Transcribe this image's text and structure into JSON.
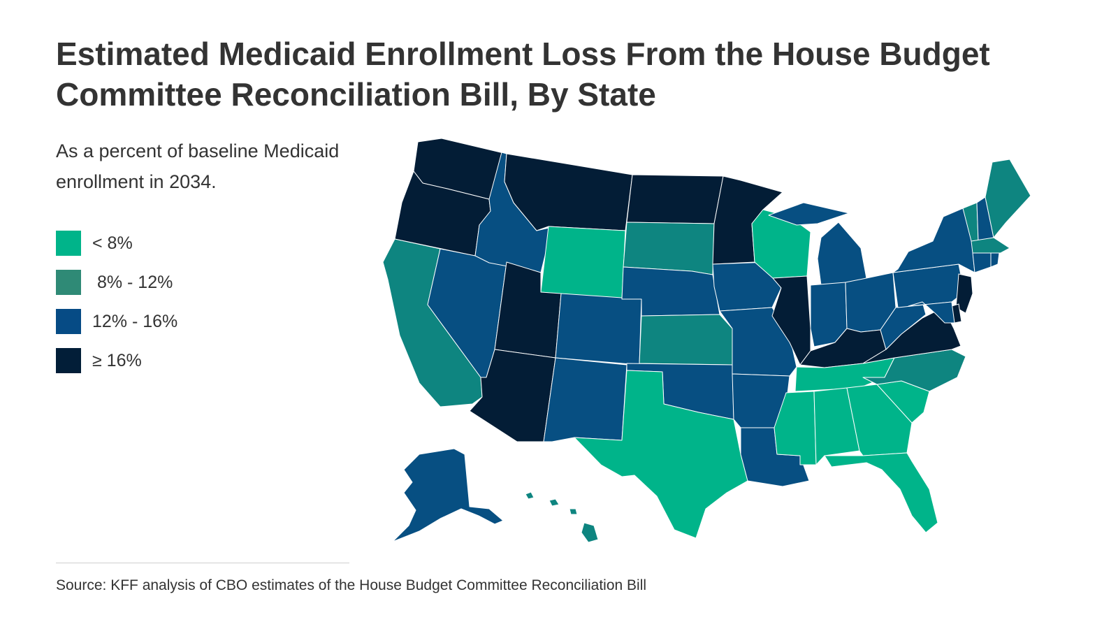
{
  "title": "Estimated Medicaid Enrollment Loss From the House Budget Committee Reconciliation Bill, By State",
  "subtitle": "As a percent of baseline Medicaid enrollment in 2034.",
  "legend": [
    {
      "label": "< 8%",
      "color": "#00b48a"
    },
    {
      "label": " 8% - 12%",
      "color": "#2f8a76"
    },
    {
      "label": "12% - 16%",
      "color": "#064b85"
    },
    {
      "label": "≥ 16%",
      "color": "#021e38"
    }
  ],
  "source": "Source: KFF analysis of CBO estimates of the House Budget Committee Reconciliation Bill",
  "colors": {
    "lt8": "#00b48a",
    "b8_12": "#0e8580",
    "b12_16": "#074f82",
    "ge16": "#031d36"
  },
  "state_categories": {
    "WA": "ge16",
    "OR": "ge16",
    "CA": "b8_12",
    "NV": "b12_16",
    "ID": "b12_16",
    "MT": "ge16",
    "WY": "lt8",
    "UT": "ge16",
    "AZ": "ge16",
    "CO": "b12_16",
    "NM": "b12_16",
    "ND": "ge16",
    "SD": "b8_12",
    "NE": "b12_16",
    "KS": "b8_12",
    "OK": "b12_16",
    "TX": "lt8",
    "MN": "ge16",
    "IA": "b12_16",
    "MO": "b12_16",
    "AR": "b12_16",
    "LA": "b12_16",
    "WI": "lt8",
    "IL": "ge16",
    "MI": "b12_16",
    "IN": "b12_16",
    "OH": "b12_16",
    "KY": "ge16",
    "TN": "lt8",
    "MS": "lt8",
    "AL": "lt8",
    "GA": "lt8",
    "FL": "lt8",
    "SC": "lt8",
    "NC": "b8_12",
    "VA": "ge16",
    "WV": "b12_16",
    "PA": "b12_16",
    "NY": "b12_16",
    "NJ": "ge16",
    "DE": "ge16",
    "MD": "b12_16",
    "VT": "b8_12",
    "NH": "b12_16",
    "ME": "b8_12",
    "MA": "b8_12",
    "CT": "b12_16",
    "RI": "b12_16",
    "AK": "b12_16",
    "HI": "b8_12"
  }
}
